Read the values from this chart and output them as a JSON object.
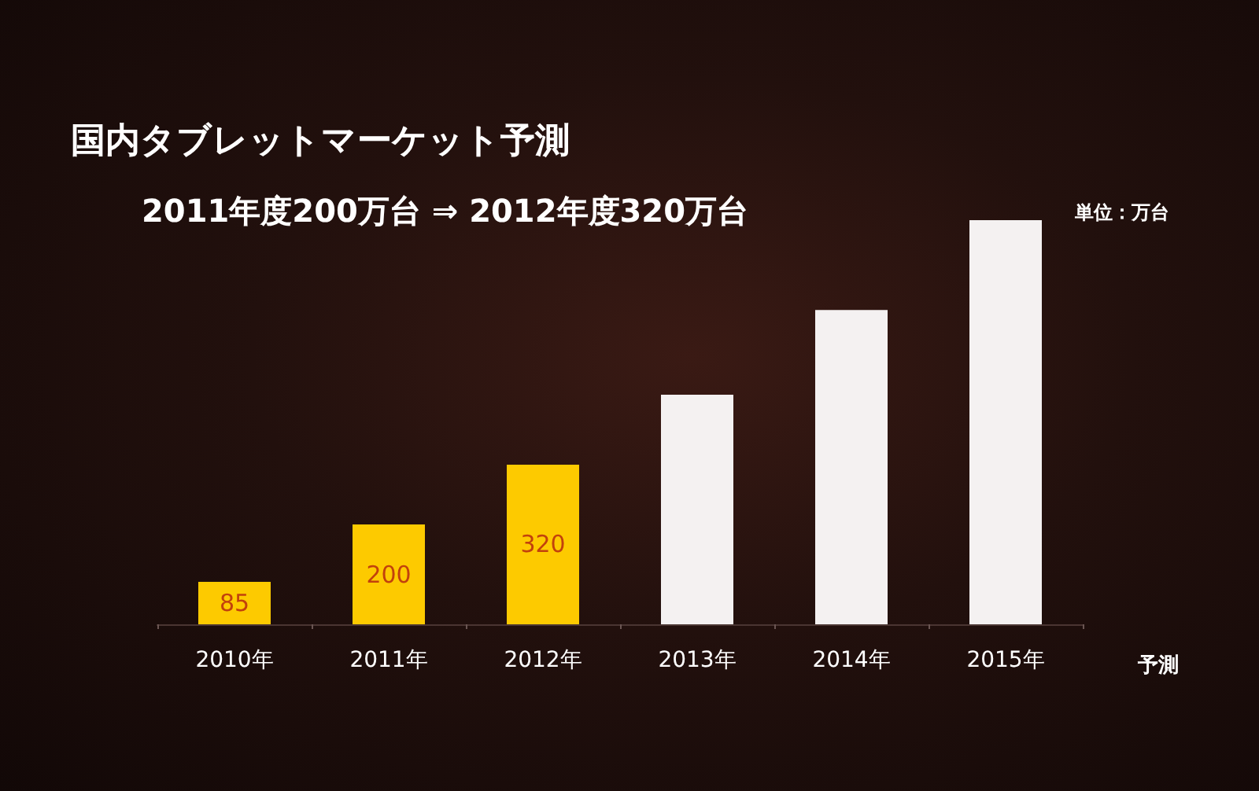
{
  "chart_data": {
    "type": "bar",
    "title": "国内タブレットマーケット予測",
    "subtitle": "2011年度200万台 ⇒ 2012年度320万台",
    "categories": [
      "2010年",
      "2011年",
      "2012年",
      "2013年",
      "2014年",
      "2015年"
    ],
    "values": [
      85,
      200,
      320,
      460,
      630,
      810
    ],
    "colors": [
      "#fdca00",
      "#fdca00",
      "#fdca00",
      "#f4f1f1",
      "#f4f1f1",
      "#f4f1f1"
    ],
    "value_labels": [
      "85",
      "200",
      "320",
      null,
      null,
      null
    ],
    "annotations": [
      "単位：万台",
      "予測"
    ]
  }
}
